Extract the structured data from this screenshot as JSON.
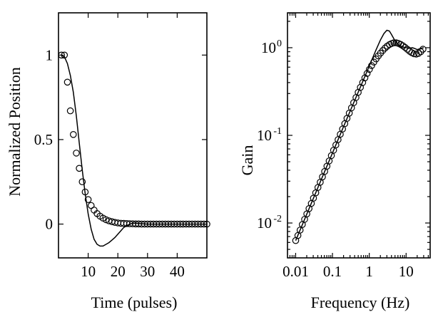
{
  "chart_data": [
    {
      "type": "line",
      "title": "",
      "xlabel": "Time (pulses)",
      "ylabel": "Normalized Position",
      "xlim": [
        0,
        50
      ],
      "ylim": [
        -0.2,
        1.25
      ],
      "x_ticks": [
        {
          "value": 10,
          "label": "10"
        },
        {
          "value": 20,
          "label": "20"
        },
        {
          "value": 30,
          "label": "30"
        },
        {
          "value": 40,
          "label": "40"
        }
      ],
      "y_ticks": [
        {
          "value": 0,
          "label": "0"
        },
        {
          "value": 0.5,
          "label": "0.5"
        },
        {
          "value": 1,
          "label": "1"
        }
      ],
      "grid": false,
      "series": [
        {
          "style": "line",
          "x": [
            1,
            2,
            3,
            4,
            5,
            6,
            7,
            8,
            9,
            10,
            11,
            12,
            13,
            14,
            15,
            16,
            17,
            18,
            19,
            20,
            21,
            22,
            23,
            24,
            25,
            26,
            27,
            28,
            30,
            35,
            40,
            45,
            50
          ],
          "y": [
            1,
            0.99,
            0.95,
            0.88,
            0.78,
            0.64,
            0.48,
            0.32,
            0.18,
            0.06,
            -0.03,
            -0.09,
            -0.12,
            -0.13,
            -0.13,
            -0.12,
            -0.11,
            -0.095,
            -0.08,
            -0.06,
            -0.04,
            -0.02,
            -0.01,
            0,
            0.005,
            0.005,
            0.003,
            0.002,
            0,
            0,
            0,
            0,
            0
          ]
        },
        {
          "style": "markers",
          "x": [
            1,
            2,
            3,
            4,
            5,
            6,
            7,
            8,
            9,
            10,
            11,
            12,
            13,
            14,
            15,
            16,
            17,
            18,
            19,
            20,
            21,
            22,
            23,
            24,
            25,
            26,
            27,
            28,
            29,
            30,
            31,
            32,
            33,
            34,
            35,
            36,
            37,
            38,
            39,
            40,
            41,
            42,
            43,
            44,
            45,
            46,
            47,
            48,
            49,
            50
          ],
          "y": [
            1,
            1,
            0.84,
            0.67,
            0.53,
            0.42,
            0.33,
            0.25,
            0.19,
            0.145,
            0.11,
            0.083,
            0.062,
            0.047,
            0.035,
            0.026,
            0.019,
            0.014,
            0.01,
            0.007,
            0.005,
            0.004,
            0.003,
            0.002,
            0.0015,
            0.001,
            0.001,
            0,
            0,
            0,
            0,
            0,
            0,
            0,
            0,
            0,
            0,
            0,
            0,
            0,
            0,
            0,
            0,
            0,
            0,
            0,
            0,
            0,
            0,
            0
          ]
        }
      ]
    },
    {
      "type": "line",
      "title": "",
      "xlabel": "Frequency (Hz)",
      "ylabel": "Gain",
      "x_scale": "log",
      "y_scale": "log",
      "xlim": [
        0.006,
        45
      ],
      "ylim": [
        0.004,
        2.5
      ],
      "x_ticks": [
        {
          "value": 0.01,
          "label": "0.01"
        },
        {
          "value": 0.1,
          "label": "0.1"
        },
        {
          "value": 1,
          "label": "1"
        },
        {
          "value": 10,
          "label": "10"
        }
      ],
      "y_ticks": [
        {
          "value": 0.01,
          "label": "10",
          "exp": "-2"
        },
        {
          "value": 0.1,
          "label": "10",
          "exp": "-1"
        },
        {
          "value": 1,
          "label": "10",
          "exp": "0"
        }
      ],
      "grid": false,
      "series": [
        {
          "style": "line",
          "x": [
            0.01,
            0.02,
            0.05,
            0.1,
            0.2,
            0.5,
            1,
            1.5,
            2,
            2.5,
            3,
            3.5,
            4,
            5,
            6,
            8,
            10,
            12,
            15,
            18,
            20,
            25,
            30
          ],
          "y": [
            0.0063,
            0.0126,
            0.0315,
            0.063,
            0.126,
            0.31,
            0.62,
            0.93,
            1.22,
            1.45,
            1.58,
            1.55,
            1.42,
            1.2,
            1.08,
            1.02,
            1.0,
            0.99,
            1.0,
            0.97,
            0.95,
            0.98,
            1.0
          ]
        },
        {
          "style": "markers",
          "x": [
            0.01,
            0.0115,
            0.0132,
            0.0152,
            0.0175,
            0.0201,
            0.0231,
            0.0266,
            0.0305,
            0.0351,
            0.0404,
            0.0464,
            0.0534,
            0.0614,
            0.0706,
            0.0811,
            0.0933,
            0.1073,
            0.1234,
            0.1419,
            0.1632,
            0.1877,
            0.2158,
            0.2482,
            0.2854,
            0.3282,
            0.3774,
            0.434,
            0.4991,
            0.574,
            0.6601,
            0.7591,
            0.873,
            1.0039,
            1.1545,
            1.3277,
            1.5268,
            1.7558,
            2.0192,
            2.3221,
            2.6704,
            3.071,
            3.5316,
            4.0614,
            4.6706,
            5.3712,
            6.1769,
            7.1034,
            8.1689,
            9.3943,
            10.8,
            12.42,
            14.29,
            16.43,
            18.9,
            21.73,
            25.0,
            28.7
          ],
          "y": [
            0.0063,
            0.0072,
            0.0083,
            0.0096,
            0.011,
            0.0127,
            0.0146,
            0.0167,
            0.0192,
            0.0221,
            0.0254,
            0.0292,
            0.0336,
            0.0387,
            0.0445,
            0.0511,
            0.0588,
            0.0676,
            0.0777,
            0.0894,
            0.1028,
            0.1182,
            0.1358,
            0.1561,
            0.1793,
            0.2058,
            0.236,
            0.2703,
            0.3089,
            0.3522,
            0.4001,
            0.4524,
            0.5081,
            0.5661,
            0.6252,
            0.6848,
            0.7448,
            0.8054,
            0.8672,
            0.9289,
            0.9879,
            1.0415,
            1.0862,
            1.1187,
            1.136,
            1.137,
            1.121,
            1.091,
            1.051,
            1.006,
            0.959,
            0.914,
            0.876,
            0.852,
            0.846,
            0.862,
            0.9,
            0.96
          ]
        }
      ]
    }
  ]
}
